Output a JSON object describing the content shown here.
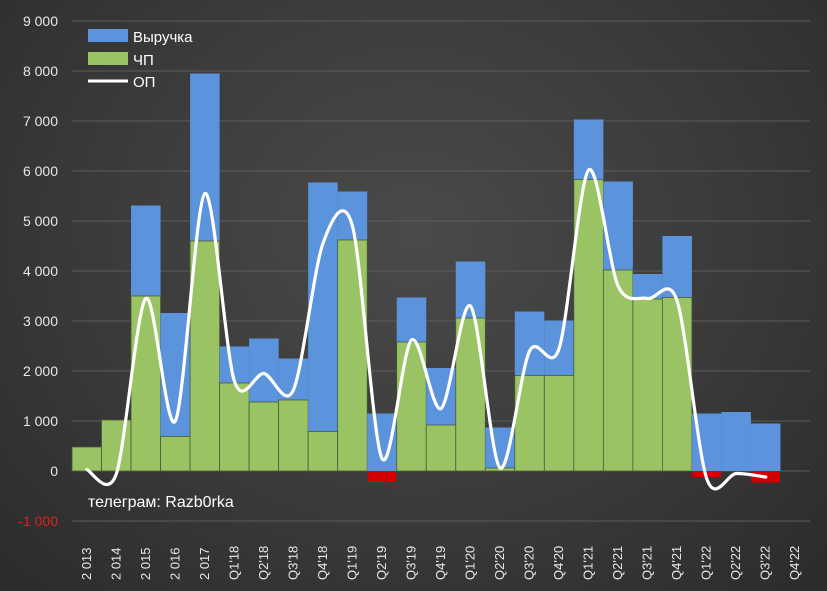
{
  "chart_data": {
    "type": "bar",
    "categories": [
      "2 013",
      "2 014",
      "2 015",
      "2 016",
      "2 017",
      "Q1'18",
      "Q2'18",
      "Q3'18",
      "Q4'18",
      "Q1'19",
      "Q2'19",
      "Q3'19",
      "Q4'19",
      "Q1'20",
      "Q2'20",
      "Q3'20",
      "Q4'20",
      "Q1'21",
      "Q2'21",
      "Q3'21",
      "Q4'21",
      "Q1'22",
      "Q2'22",
      "Q3'22",
      "Q4'22"
    ],
    "series": [
      {
        "name": "Выручка",
        "kind": "bar",
        "color": "#5b93dc",
        "values": [
          480,
          1020,
          5310,
          3160,
          7950,
          2490,
          2650,
          2250,
          5770,
          5590,
          1150,
          3470,
          2060,
          4190,
          870,
          3190,
          3010,
          7030,
          5790,
          3940,
          4700,
          1150,
          1180,
          950,
          0
        ]
      },
      {
        "name": "ЧП",
        "kind": "bar",
        "color": "#9ac463",
        "negative_color": "#d40000",
        "values": [
          480,
          1020,
          3500,
          690,
          4600,
          1760,
          1380,
          1420,
          790,
          4620,
          -220,
          2580,
          920,
          3060,
          60,
          1910,
          1910,
          5830,
          4020,
          3440,
          3470,
          -120,
          0,
          -230,
          0
        ]
      },
      {
        "name": "ОП",
        "kind": "line",
        "color": "#ffffff",
        "values": [
          30,
          -60,
          3450,
          1000,
          5550,
          1800,
          1950,
          1620,
          4550,
          4900,
          250,
          2620,
          1250,
          3300,
          60,
          2400,
          2450,
          6020,
          3700,
          3450,
          3400,
          -150,
          -50,
          -120,
          null
        ]
      }
    ],
    "title": "",
    "xlabel": "",
    "ylabel": "",
    "ylim": [
      -1000,
      9000
    ],
    "yticks": [
      9000,
      8000,
      7000,
      6000,
      5000,
      4000,
      3000,
      2000,
      1000,
      0,
      -1000
    ],
    "ytick_labels": [
      "9 000",
      "8 000",
      "7 000",
      "6 000",
      "5 000",
      "4 000",
      "3 000",
      "2 000",
      "1 000",
      "0",
      "-1 000"
    ],
    "grid": true,
    "legend_position": "top-left",
    "annotation": "телеграм: Razb0rka"
  }
}
